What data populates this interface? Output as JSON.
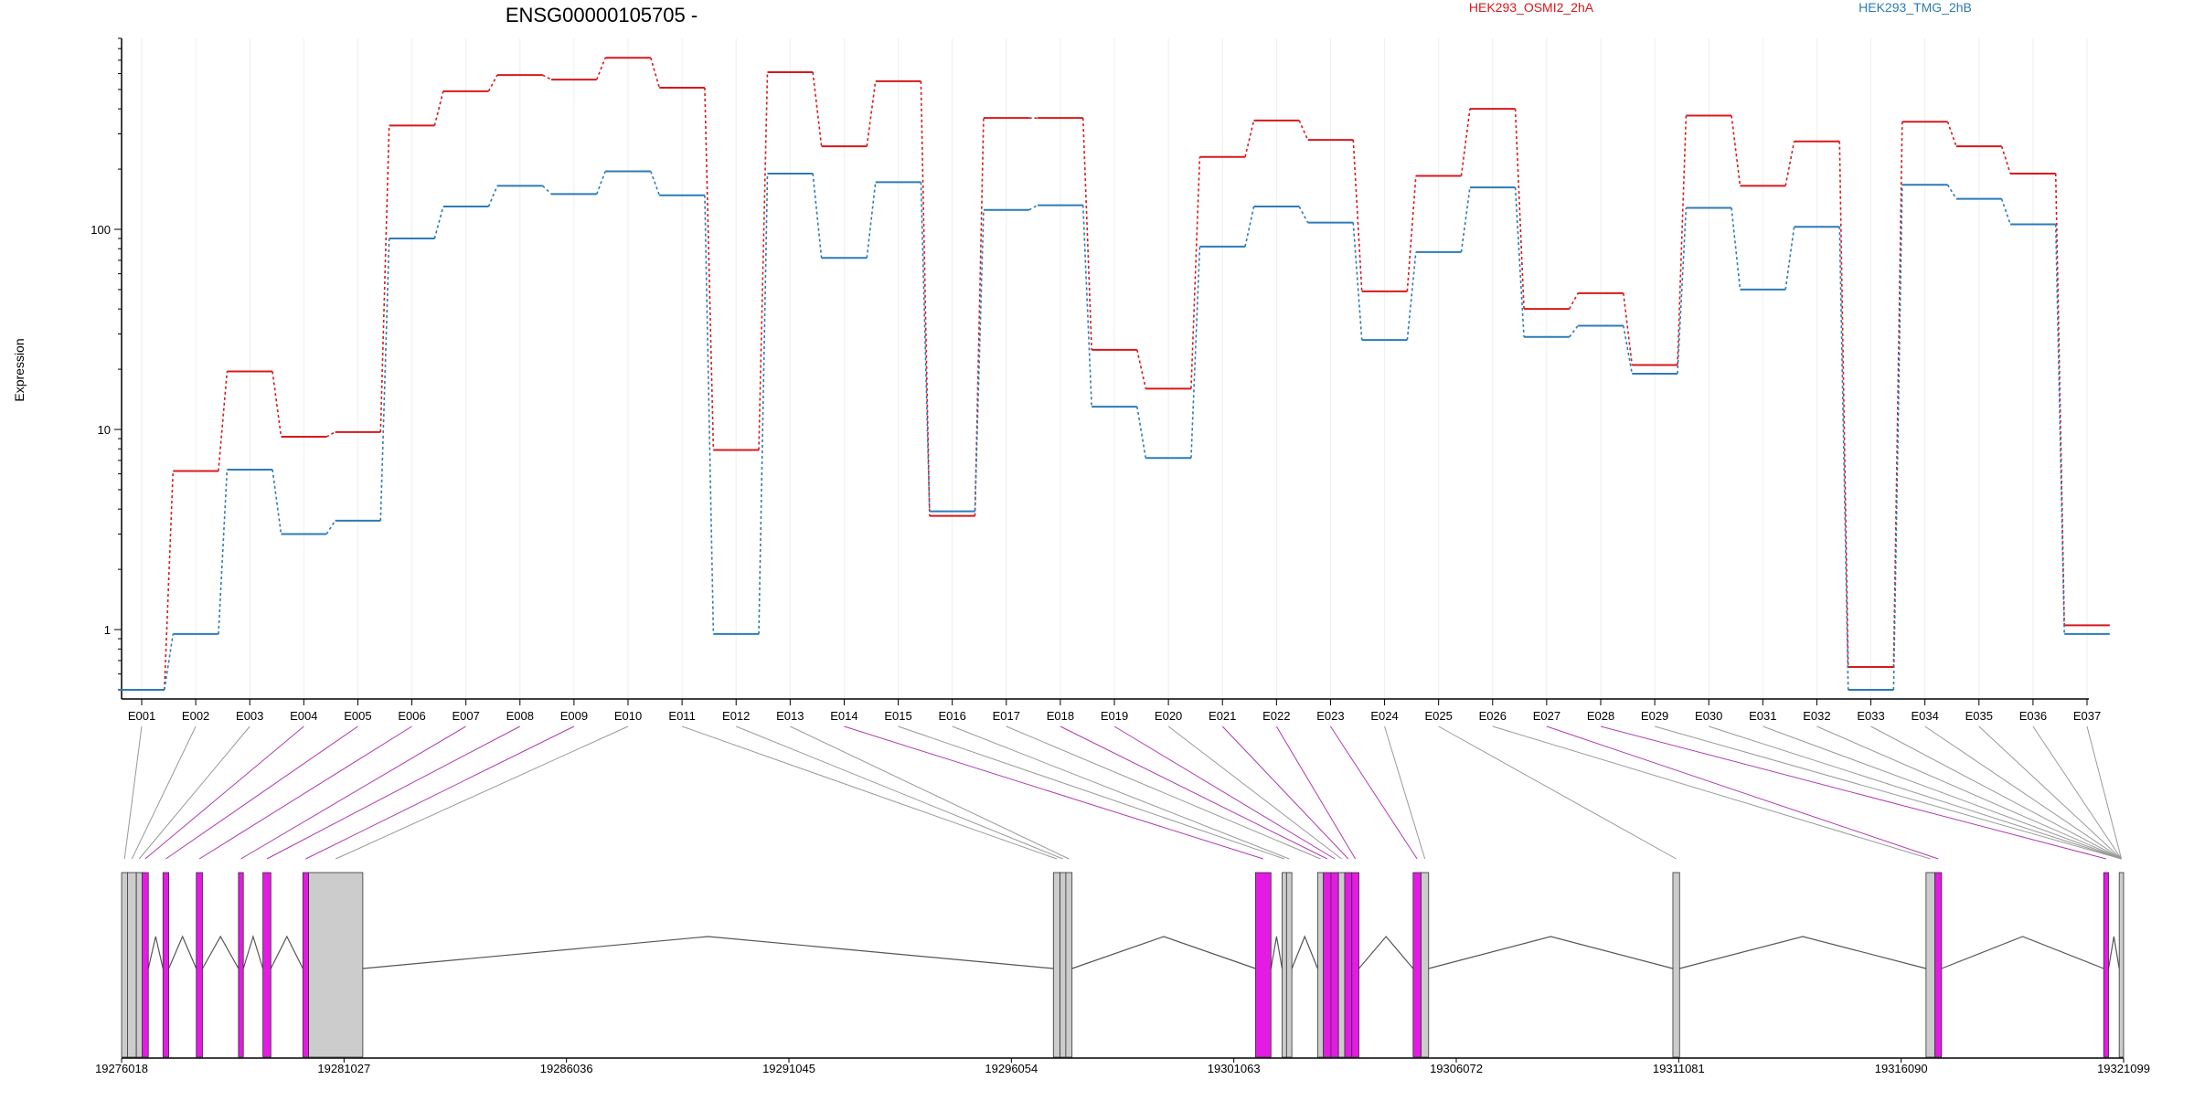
{
  "chart_data": {
    "type": "line",
    "title": "ENSG00000105705 -",
    "ylabel": "Expression",
    "yscale": "log",
    "ylim": [
      0.45,
      900
    ],
    "yticks": [
      1,
      10,
      100
    ],
    "ytick_labels": [
      "1",
      "10",
      "100"
    ],
    "categories": [
      "E001",
      "E002",
      "E003",
      "E004",
      "E005",
      "E006",
      "E007",
      "E008",
      "E009",
      "E010",
      "E011",
      "E012",
      "E013",
      "E014",
      "E015",
      "E016",
      "E017",
      "E018",
      "E019",
      "E020",
      "E021",
      "E022",
      "E023",
      "E024",
      "E025",
      "E026",
      "E027",
      "E028",
      "E029",
      "E030",
      "E031",
      "E032",
      "E033",
      "E034",
      "E035",
      "E036",
      "E037"
    ],
    "series": [
      {
        "name": "HEK293_OSMI2_2hA",
        "color": "#d7191c",
        "values": [
          0.5,
          6.2,
          19.5,
          9.2,
          9.7,
          330,
          490,
          590,
          560,
          720,
          510,
          7.9,
          610,
          260,
          550,
          3.7,
          360,
          360,
          25,
          16,
          230,
          350,
          280,
          49,
          185,
          400,
          40,
          48,
          21,
          370,
          165,
          275,
          0.65,
          345,
          260,
          190,
          1.05
        ]
      },
      {
        "name": "HEK293_TMG_2hB",
        "color": "#2c7bb6",
        "values": [
          0.5,
          0.95,
          6.3,
          3.0,
          3.5,
          90,
          130,
          165,
          150,
          195,
          148,
          0.95,
          190,
          72,
          172,
          3.9,
          125,
          132,
          13,
          7.2,
          82,
          130,
          108,
          28,
          77,
          162,
          29,
          33,
          19,
          128,
          50,
          103,
          0.5,
          167,
          142,
          106,
          0.95
        ]
      }
    ],
    "gene_track": {
      "coord_ticks": [
        19276018,
        19281027,
        19286036,
        19291045,
        19296054,
        19301063,
        19306072,
        19311081,
        19316090,
        19321099
      ],
      "range": [
        19276018,
        19321099
      ],
      "exons": [
        {
          "id": "E001",
          "start": 19276018,
          "end": 19276150,
          "color": "#cccccc"
        },
        {
          "id": "E002",
          "start": 19276150,
          "end": 19276350,
          "color": "#cccccc"
        },
        {
          "id": "E003",
          "start": 19276350,
          "end": 19276480,
          "color": "#cccccc"
        },
        {
          "id": "E004",
          "start": 19276480,
          "end": 19276620,
          "color": "#e31be3"
        },
        {
          "id": "E005",
          "start": 19276950,
          "end": 19277080,
          "color": "#e31be3"
        },
        {
          "id": "E006",
          "start": 19277700,
          "end": 19277840,
          "color": "#e31be3"
        },
        {
          "id": "E007",
          "start": 19278650,
          "end": 19278760,
          "color": "#e31be3"
        },
        {
          "id": "E008",
          "start": 19279200,
          "end": 19279380,
          "color": "#e31be3"
        },
        {
          "id": "E009",
          "start": 19280100,
          "end": 19280230,
          "color": "#e31be3"
        },
        {
          "id": "E010",
          "start": 19280230,
          "end": 19281450,
          "color": "#cccccc"
        },
        {
          "id": "E011",
          "start": 19297000,
          "end": 19297150,
          "color": "#cccccc"
        },
        {
          "id": "E012",
          "start": 19297150,
          "end": 19297280,
          "color": "#cccccc"
        },
        {
          "id": "E013",
          "start": 19297280,
          "end": 19297420,
          "color": "#cccccc"
        },
        {
          "id": "E014",
          "start": 19301550,
          "end": 19301900,
          "color": "#e31be3"
        },
        {
          "id": "E015",
          "start": 19302150,
          "end": 19302250,
          "color": "#cccccc"
        },
        {
          "id": "E016",
          "start": 19302250,
          "end": 19302370,
          "color": "#cccccc"
        },
        {
          "id": "E017",
          "start": 19302950,
          "end": 19303080,
          "color": "#cccccc"
        },
        {
          "id": "E018",
          "start": 19303080,
          "end": 19303250,
          "color": "#e31be3"
        },
        {
          "id": "E019",
          "start": 19303250,
          "end": 19303420,
          "color": "#e31be3"
        },
        {
          "id": "E020",
          "start": 19303420,
          "end": 19303560,
          "color": "#cccccc"
        },
        {
          "id": "E021",
          "start": 19303560,
          "end": 19303720,
          "color": "#e31be3"
        },
        {
          "id": "E022",
          "start": 19303720,
          "end": 19303880,
          "color": "#e31be3"
        },
        {
          "id": "E023",
          "start": 19305100,
          "end": 19305280,
          "color": "#e31be3"
        },
        {
          "id": "E024",
          "start": 19305280,
          "end": 19305450,
          "color": "#cccccc"
        },
        {
          "id": "E025",
          "start": 19310950,
          "end": 19311100,
          "color": "#cccccc"
        },
        {
          "id": "E026",
          "start": 19316650,
          "end": 19316850,
          "color": "#cccccc"
        },
        {
          "id": "E027",
          "start": 19316850,
          "end": 19317000,
          "color": "#e31be3"
        },
        {
          "id": "E028",
          "start": 19320650,
          "end": 19320760,
          "color": "#e31be3"
        },
        {
          "id": "E029",
          "start": 19321000,
          "end": 19321099,
          "color": "#cccccc"
        }
      ]
    }
  }
}
